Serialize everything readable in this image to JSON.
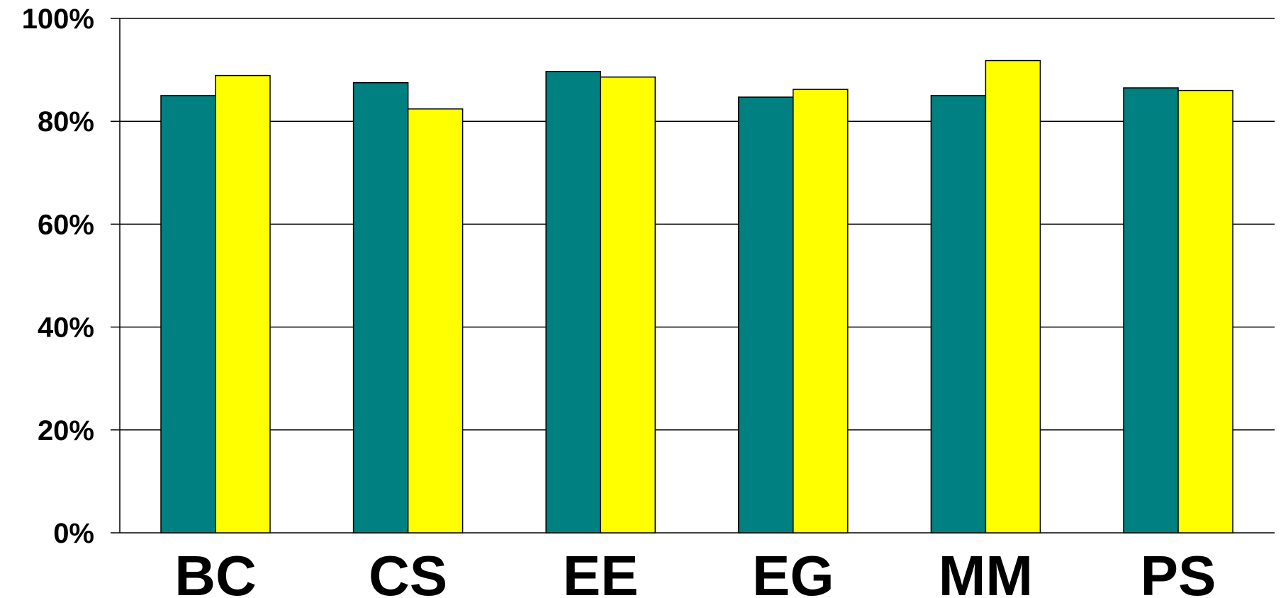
{
  "chart_data": {
    "type": "bar",
    "categories": [
      "BC",
      "CS",
      "EE",
      "EG",
      "MM",
      "PS"
    ],
    "series": [
      {
        "values": [
          85,
          87.5,
          89.7,
          84.7,
          85,
          86.5
        ]
      },
      {
        "values": [
          88.9,
          82.4,
          88.6,
          86.2,
          91.8,
          86
        ]
      }
    ],
    "colors": [
      "#008080",
      "#ffff00"
    ],
    "ylim": [
      0,
      100
    ],
    "yticks": [
      0,
      20,
      40,
      60,
      80,
      100
    ],
    "ytick_labels": [
      "0%",
      "20%",
      "40%",
      "60%",
      "80%",
      "100%"
    ],
    "grid": true,
    "legend": "none",
    "title": "",
    "xlabel": "",
    "ylabel": ""
  }
}
